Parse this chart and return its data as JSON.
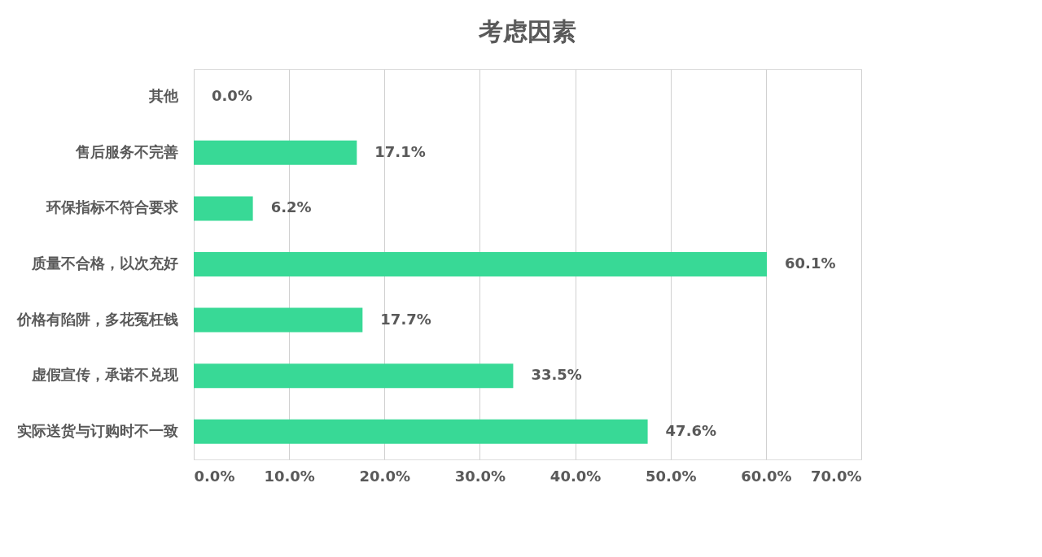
{
  "chart_data": {
    "type": "bar",
    "orientation": "horizontal",
    "title": "考虑因素",
    "categories": [
      "其他",
      "售后服务不完善",
      "环保指标不符合要求",
      "质量不合格，以次充好",
      "价格有陷阱，多花冤枉钱",
      "虚假宣传，承诺不兑现",
      "实际送货与订购时不一致"
    ],
    "values": [
      0.0,
      17.1,
      6.2,
      60.1,
      17.7,
      33.5,
      47.6
    ],
    "value_labels": [
      "0.0%",
      "17.1%",
      "6.2%",
      "60.1%",
      "17.7%",
      "33.5%",
      "47.6%"
    ],
    "color": "#38d996",
    "xlim": [
      0,
      70
    ],
    "xticks": [
      {
        "value": 0,
        "label": "0.0%"
      },
      {
        "value": 10,
        "label": "10.0%"
      },
      {
        "value": 20,
        "label": "20.0%"
      },
      {
        "value": 30,
        "label": "30.0%"
      },
      {
        "value": 40,
        "label": "40.0%"
      },
      {
        "value": 50,
        "label": "50.0%"
      },
      {
        "value": 60,
        "label": "60.0%"
      },
      {
        "value": 70,
        "label": "70.0%"
      }
    ],
    "grid": "x"
  }
}
